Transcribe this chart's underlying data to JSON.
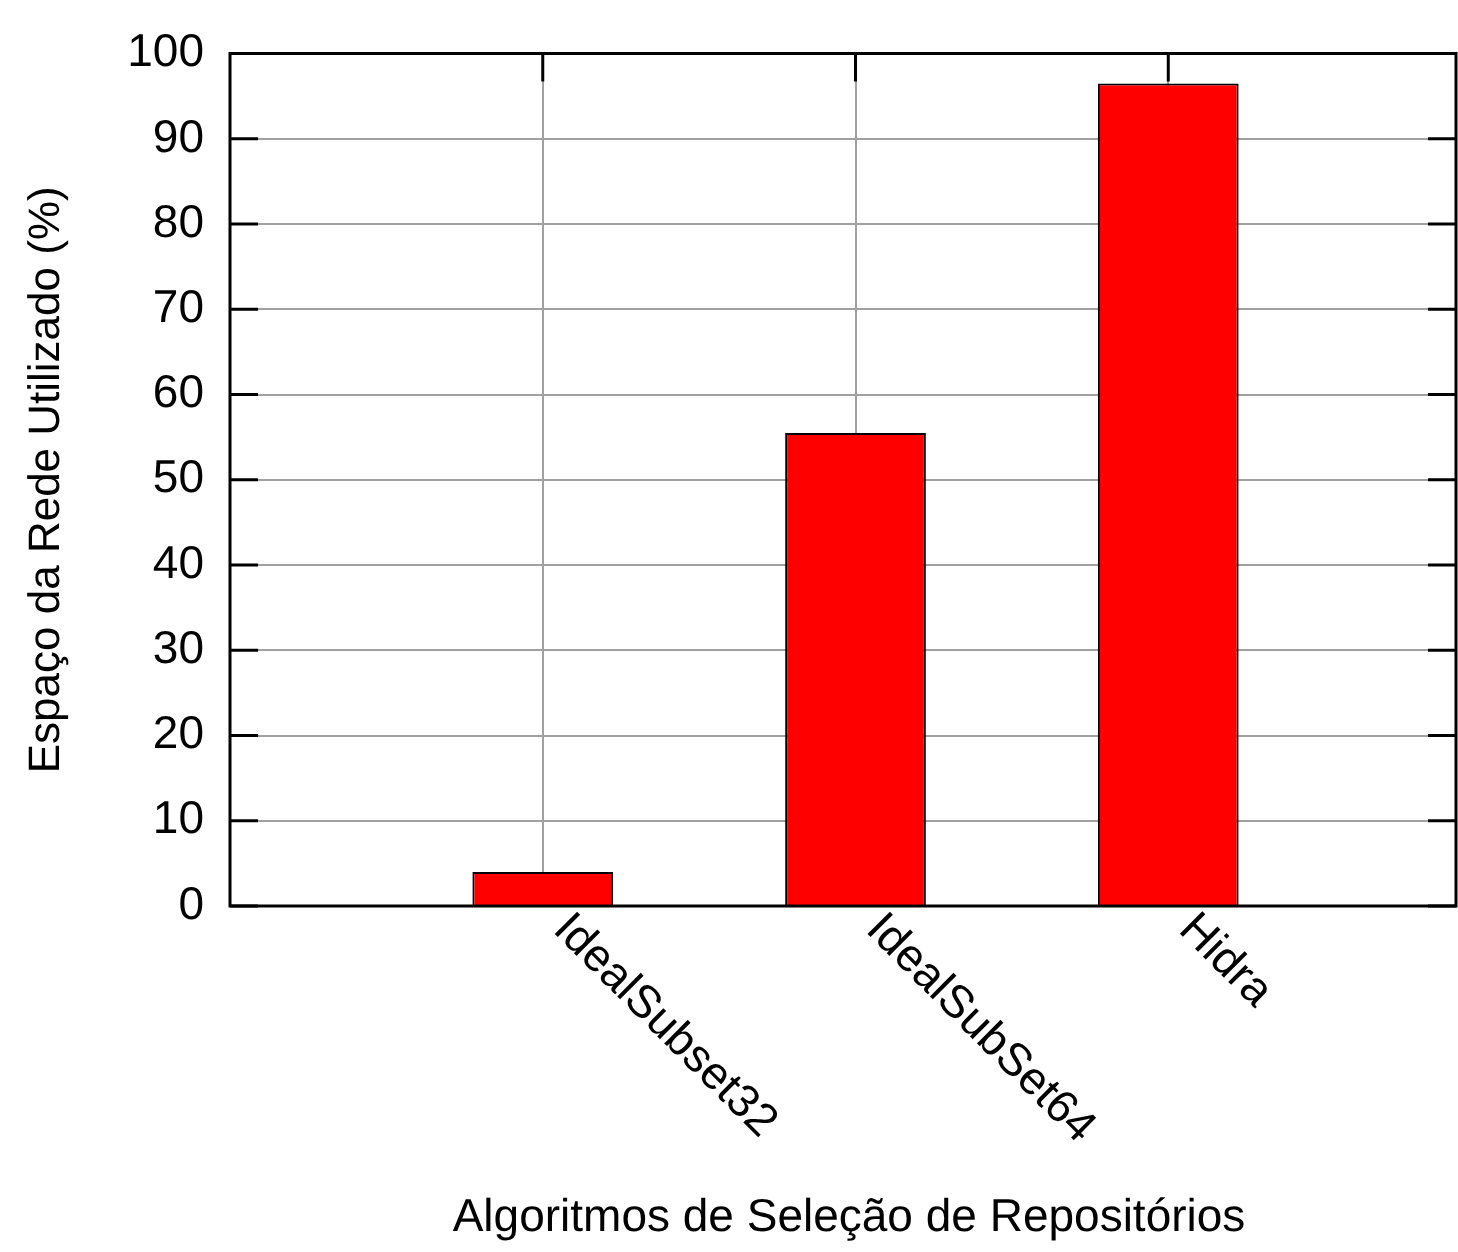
{
  "chart_data": {
    "type": "bar",
    "xlabel": "Algoritmos de Seleção de Repositórios",
    "ylabel": "Espaço da Rede Utilizado (%)",
    "categories": [
      "IdealSubset32",
      "IdealSubSet64",
      "Hidra"
    ],
    "values": [
      4,
      55.5,
      96.5
    ],
    "color": "#ff0000",
    "ylim": [
      0,
      100
    ],
    "yticks": [
      0,
      10,
      20,
      30,
      40,
      50,
      60,
      70,
      80,
      90,
      100
    ],
    "grid": true
  }
}
